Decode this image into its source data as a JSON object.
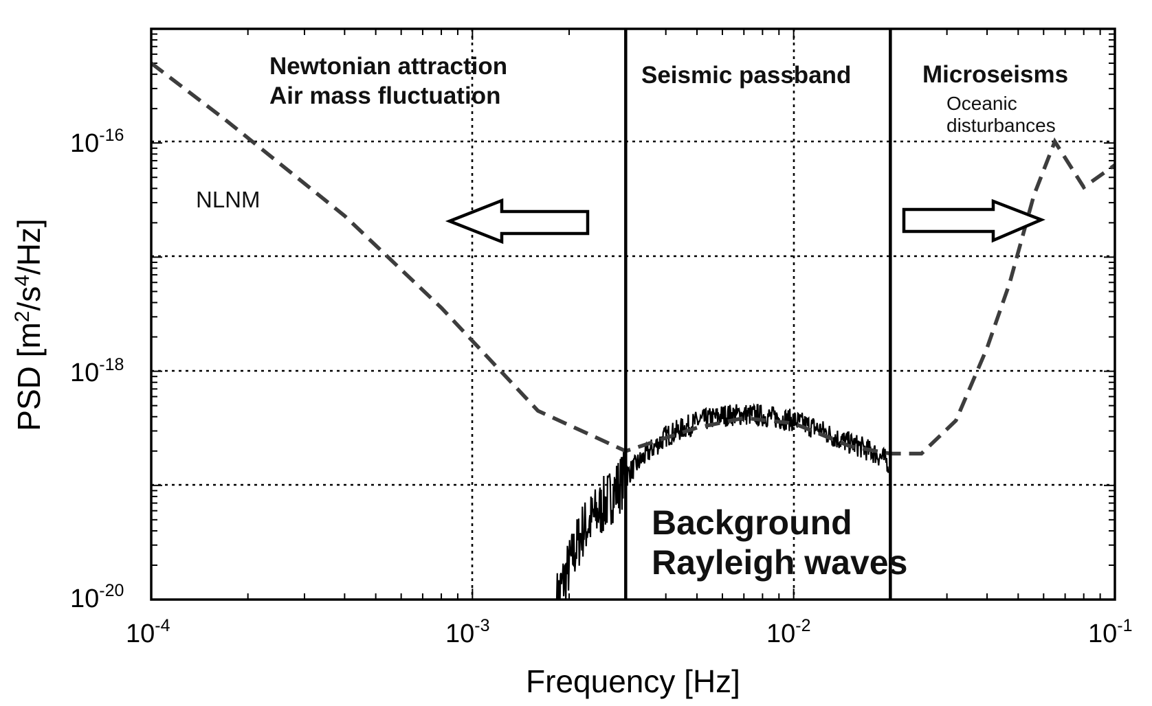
{
  "chart_data": {
    "type": "line",
    "xscale": "log",
    "yscale": "log",
    "xlim": [
      0.0001,
      0.1
    ],
    "ylim": [
      1e-20,
      1e-15
    ],
    "xlabel": "Frequency [Hz]",
    "ylabel": {
      "prefix": "PSD [m",
      "sup1": "2",
      "mid": "/s",
      "sup2": "4",
      "suffix": "/Hz]"
    },
    "x_ticks": [
      {
        "value": 0.0001,
        "base": "10",
        "exp": "-4"
      },
      {
        "value": 0.001,
        "base": "10",
        "exp": "-3"
      },
      {
        "value": 0.01,
        "base": "10",
        "exp": "-2"
      },
      {
        "value": 0.1,
        "base": "10",
        "exp": "-1"
      }
    ],
    "y_ticks": [
      {
        "value": 1e-16,
        "base": "10",
        "exp": "-16"
      },
      {
        "value": 1e-18,
        "base": "10",
        "exp": "-18"
      },
      {
        "value": 1e-20,
        "base": "10",
        "exp": "-20"
      }
    ],
    "y_gridlines": [
      1e-16,
      1e-17,
      1e-18,
      1e-19
    ],
    "x_gridlines": [
      0.001,
      0.01
    ],
    "band_boundaries_hz": [
      0.003,
      0.02
    ],
    "series": [
      {
        "name": "NLNM",
        "style": "dashed",
        "x": [
          0.0001,
          0.00017,
          0.0004,
          0.0008,
          0.0016,
          0.003,
          0.005,
          0.007,
          0.01,
          0.015,
          0.02,
          0.025,
          0.032,
          0.04,
          0.047,
          0.056,
          0.065,
          0.08,
          0.1
        ],
        "y": [
          5e-16,
          1.6e-16,
          2.3e-17,
          3.6e-18,
          4.5e-19,
          2e-19,
          3.2e-19,
          3.9e-19,
          3.5e-19,
          2.2e-19,
          1.9e-19,
          1.9e-19,
          3.7e-19,
          1.6e-18,
          5.9e-18,
          3.5e-17,
          1.03e-16,
          4.1e-17,
          6.4e-17
        ]
      },
      {
        "name": "Background Rayleigh waves PSD",
        "style": "solid",
        "x": [
          0.00183,
          0.0022,
          0.0026,
          0.003,
          0.0035,
          0.004,
          0.005,
          0.006,
          0.007,
          0.008,
          0.01,
          0.012,
          0.014,
          0.016,
          0.018,
          0.0197
        ],
        "y": [
          1e-20,
          4e-20,
          7e-20,
          1.2e-19,
          1.9e-19,
          2.7e-19,
          3.6e-19,
          4.1e-19,
          4.2e-19,
          4.1e-19,
          3.7e-19,
          3.1e-19,
          2.5e-19,
          2.2e-19,
          1.9e-19,
          1.6e-19
        ],
        "noise_seed": 7,
        "noise_amplitude_decades": 0.1
      }
    ],
    "annotations": {
      "newtonian_line1": "Newtonian attraction",
      "newtonian_line2": "Air mass fluctuation",
      "seismic": "Seismic passband",
      "microseisms": "Microseisms",
      "oceanic_line1": "Oceanic",
      "oceanic_line2": "disturbances",
      "nlnm_label": "NLNM",
      "background_line1": "Background",
      "background_line2": "Rayleigh waves"
    }
  }
}
